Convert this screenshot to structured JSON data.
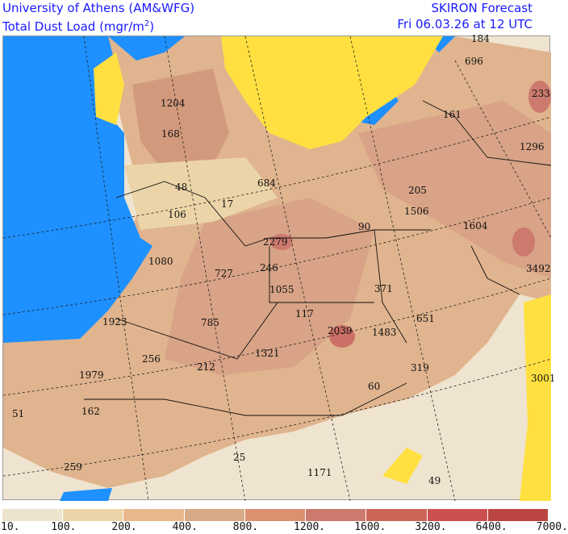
{
  "header": {
    "institution": "University of Athens (AM&WFG)",
    "product": "Total Dust Load (mgr/m",
    "unit_exponent": "2",
    "product_close": ")",
    "model": "SKIRON Forecast",
    "valid_time": "Fri 06.03.26 at 12 UTC"
  },
  "map": {
    "colors": {
      "sea": "#1e90ff",
      "no_dust": "#ffe040",
      "border": "#111111",
      "grid": "#222222"
    },
    "labels": [
      "184",
      "696",
      "233",
      "1204",
      "168",
      "161",
      "1296",
      "48",
      "684",
      "205",
      "106",
      "17",
      "1506",
      "1604",
      "90",
      "2279",
      "1080",
      "727",
      "246",
      "3492",
      "1055",
      "371",
      "117",
      "1923",
      "785",
      "651",
      "2039",
      "1483",
      "1321",
      "256",
      "212",
      "319",
      "3001",
      "1979",
      "60",
      "51",
      "162",
      "25",
      "1171",
      "259",
      "49"
    ]
  },
  "legend": {
    "colors": [
      "#eee3cc",
      "#ebd5a8",
      "#e9b98e",
      "#d9aa86",
      "#dc9070",
      "#cc7a6e",
      "#cd6557",
      "#cc5050",
      "#bb4540"
    ],
    "ticks": [
      "10.",
      "100.",
      "200.",
      "400.",
      "800.",
      "1200.",
      "1600.",
      "3200.",
      "6400.",
      "7000."
    ]
  }
}
